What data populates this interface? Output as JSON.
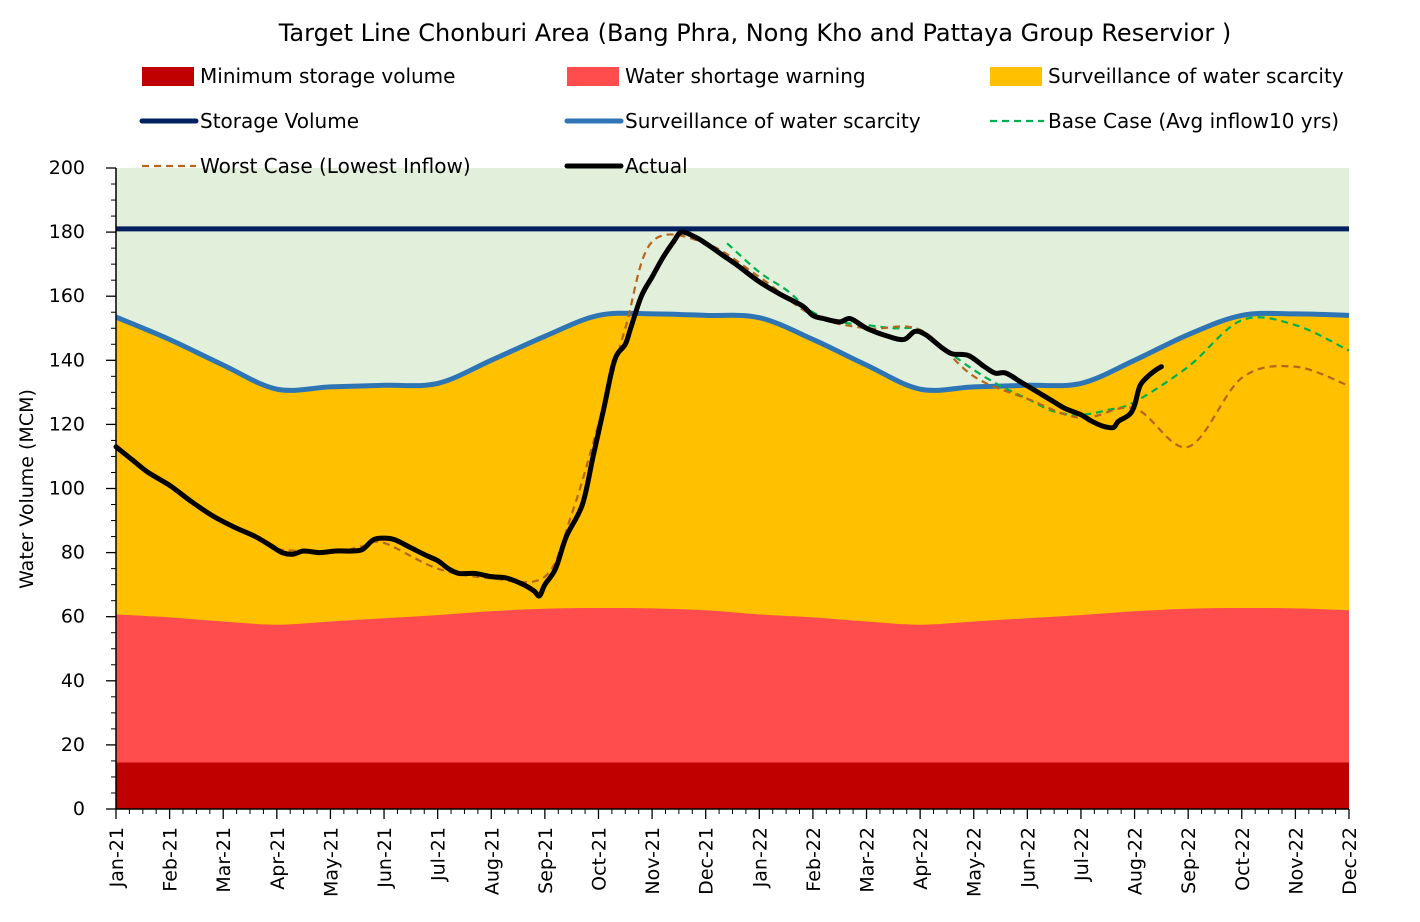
{
  "chart_data": {
    "type": "area",
    "title": "Target Line Chonburi Area (Bang Phra, Nong Kho and Pattaya Group Reservior )",
    "xlabel": "",
    "ylabel": "Water Volume (MCM)",
    "ylim": [
      0,
      200
    ],
    "yticks": [
      0,
      20,
      40,
      60,
      80,
      100,
      120,
      140,
      160,
      180,
      200
    ],
    "categories": [
      "Jan-21",
      "Feb-21",
      "Mar-21",
      "Apr-21",
      "May-21",
      "Jun-21",
      "Jul-21",
      "Aug-21",
      "Sep-21",
      "Oct-21",
      "Nov-21",
      "Dec-21",
      "Jan-22",
      "Feb-22",
      "Mar-22",
      "Apr-22",
      "May-22",
      "Jun-22",
      "Jul-22",
      "Aug-22",
      "Sep-22",
      "Oct-22",
      "Nov-22",
      "Dec-22"
    ],
    "colors": {
      "background": "#e2efda",
      "min_storage": "#c00000",
      "shortage": "#ff4d4d",
      "surveillance_fill": "#ffc000",
      "storage_line": "#002060",
      "surveillance_line": "#2e75b6",
      "base_case": "#00b050",
      "worst_case": "#b5651d",
      "actual": "#000000"
    },
    "legend": [
      {
        "key": "min_storage",
        "label": "Minimum storage volume",
        "kind": "box"
      },
      {
        "key": "shortage",
        "label": "Water shortage warning",
        "kind": "box"
      },
      {
        "key": "surveillance_fill",
        "label": "Surveillance of water scarcity",
        "kind": "box"
      },
      {
        "key": "storage_line",
        "label": "Storage Volume",
        "kind": "line"
      },
      {
        "key": "surveillance_line",
        "label": "Surveillance of water scarcity",
        "kind": "line"
      },
      {
        "key": "base_case",
        "label": "Base Case (Avg inflow10 yrs)",
        "kind": "dash"
      },
      {
        "key": "worst_case",
        "label": "Worst Case (Lowest Inflow)",
        "kind": "dash"
      },
      {
        "key": "actual",
        "label": "Actual",
        "kind": "thick"
      }
    ],
    "series": {
      "min_storage": [
        14.5,
        14.5,
        14.5,
        14.5,
        14.5,
        14.5,
        14.5,
        14.5,
        14.5,
        14.5,
        14.5,
        14.5,
        14.5,
        14.5,
        14.5,
        14.5,
        14.5,
        14.5,
        14.5,
        14.5,
        14.5,
        14.5,
        14.5,
        14.5
      ],
      "shortage": [
        60.7,
        59.8,
        58.5,
        57.5,
        58.5,
        59.5,
        60.5,
        61.7,
        62.5,
        62.7,
        62.6,
        62.0,
        60.7,
        59.8,
        58.5,
        57.5,
        58.5,
        59.5,
        60.5,
        61.7,
        62.5,
        62.7,
        62.6,
        62.0
      ],
      "storage_volume": [
        181,
        181,
        181,
        181,
        181,
        181,
        181,
        181,
        181,
        181,
        181,
        181,
        181,
        181,
        181,
        181,
        181,
        181,
        181,
        181,
        181,
        181,
        181,
        181
      ],
      "surveillance": [
        153.5,
        146.5,
        138.5,
        131.0,
        131.7,
        132.2,
        132.8,
        140.0,
        147.5,
        154.0,
        154.5,
        154.0,
        153.3,
        146.5,
        138.5,
        131.0,
        131.7,
        132.2,
        132.8,
        140.0,
        148.0,
        154.0,
        154.5,
        154.0
      ],
      "base_case": [
        {
          "x": 11.4,
          "y": 176.5
        },
        {
          "x": 12.0,
          "y": 167.5
        },
        {
          "x": 12.5,
          "y": 162
        },
        {
          "x": 13.0,
          "y": 155
        },
        {
          "x": 13.5,
          "y": 152
        },
        {
          "x": 14.0,
          "y": 151
        },
        {
          "x": 14.5,
          "y": 150
        },
        {
          "x": 15.0,
          "y": 149.5
        },
        {
          "x": 15.5,
          "y": 143
        },
        {
          "x": 16.0,
          "y": 137
        },
        {
          "x": 16.5,
          "y": 132
        },
        {
          "x": 17.0,
          "y": 128
        },
        {
          "x": 17.5,
          "y": 124
        },
        {
          "x": 18.0,
          "y": 123
        },
        {
          "x": 18.5,
          "y": 124.5
        },
        {
          "x": 19.0,
          "y": 127
        },
        {
          "x": 20.0,
          "y": 138
        },
        {
          "x": 21.0,
          "y": 152.5
        },
        {
          "x": 22.0,
          "y": 151
        },
        {
          "x": 23.0,
          "y": 143
        }
      ],
      "worst_case": [
        {
          "x": 3.0,
          "y": 81
        },
        {
          "x": 4.0,
          "y": 80
        },
        {
          "x": 4.6,
          "y": 82
        },
        {
          "x": 5.0,
          "y": 83
        },
        {
          "x": 6.0,
          "y": 75
        },
        {
          "x": 7.0,
          "y": 72
        },
        {
          "x": 8.0,
          "y": 72.5
        },
        {
          "x": 8.5,
          "y": 92
        },
        {
          "x": 9.0,
          "y": 120
        },
        {
          "x": 9.5,
          "y": 150
        },
        {
          "x": 10.0,
          "y": 177
        },
        {
          "x": 11.0,
          "y": 176.5
        },
        {
          "x": 12.0,
          "y": 166
        },
        {
          "x": 13.0,
          "y": 154
        },
        {
          "x": 14.0,
          "y": 150
        },
        {
          "x": 15.0,
          "y": 149.5
        },
        {
          "x": 16.0,
          "y": 135
        },
        {
          "x": 17.0,
          "y": 128
        },
        {
          "x": 18.0,
          "y": 122
        },
        {
          "x": 19.0,
          "y": 125
        },
        {
          "x": 20.0,
          "y": 113
        },
        {
          "x": 21.0,
          "y": 134.5
        },
        {
          "x": 22.0,
          "y": 138
        },
        {
          "x": 23.0,
          "y": 132
        }
      ],
      "actual": [
        {
          "x": 0.0,
          "y": 113
        },
        {
          "x": 0.3,
          "y": 109
        },
        {
          "x": 0.6,
          "y": 105
        },
        {
          "x": 1.0,
          "y": 101
        },
        {
          "x": 1.4,
          "y": 96
        },
        {
          "x": 1.8,
          "y": 91.5
        },
        {
          "x": 2.2,
          "y": 88
        },
        {
          "x": 2.6,
          "y": 85
        },
        {
          "x": 2.9,
          "y": 82
        },
        {
          "x": 3.1,
          "y": 80
        },
        {
          "x": 3.3,
          "y": 79.5
        },
        {
          "x": 3.5,
          "y": 80.5
        },
        {
          "x": 3.8,
          "y": 80
        },
        {
          "x": 4.1,
          "y": 80.5
        },
        {
          "x": 4.4,
          "y": 80.5
        },
        {
          "x": 4.6,
          "y": 81
        },
        {
          "x": 4.8,
          "y": 84
        },
        {
          "x": 5.0,
          "y": 84.5
        },
        {
          "x": 5.2,
          "y": 84
        },
        {
          "x": 5.5,
          "y": 81.5
        },
        {
          "x": 5.8,
          "y": 79
        },
        {
          "x": 6.0,
          "y": 77.5
        },
        {
          "x": 6.2,
          "y": 75
        },
        {
          "x": 6.4,
          "y": 73.5
        },
        {
          "x": 6.7,
          "y": 73.5
        },
        {
          "x": 7.0,
          "y": 72.5
        },
        {
          "x": 7.3,
          "y": 72
        },
        {
          "x": 7.6,
          "y": 70
        },
        {
          "x": 7.8,
          "y": 68
        },
        {
          "x": 7.9,
          "y": 66.5
        },
        {
          "x": 8.0,
          "y": 70
        },
        {
          "x": 8.2,
          "y": 75
        },
        {
          "x": 8.4,
          "y": 85
        },
        {
          "x": 8.7,
          "y": 95
        },
        {
          "x": 8.9,
          "y": 110
        },
        {
          "x": 9.1,
          "y": 125
        },
        {
          "x": 9.3,
          "y": 140
        },
        {
          "x": 9.5,
          "y": 145
        },
        {
          "x": 9.6,
          "y": 150
        },
        {
          "x": 9.8,
          "y": 160
        },
        {
          "x": 10.0,
          "y": 166
        },
        {
          "x": 10.2,
          "y": 172
        },
        {
          "x": 10.4,
          "y": 177
        },
        {
          "x": 10.55,
          "y": 180
        },
        {
          "x": 10.8,
          "y": 178.5
        },
        {
          "x": 11.0,
          "y": 176.5
        },
        {
          "x": 11.3,
          "y": 173
        },
        {
          "x": 11.6,
          "y": 169.5
        },
        {
          "x": 12.0,
          "y": 164.5
        },
        {
          "x": 12.4,
          "y": 160.5
        },
        {
          "x": 12.8,
          "y": 157
        },
        {
          "x": 13.0,
          "y": 154
        },
        {
          "x": 13.2,
          "y": 153
        },
        {
          "x": 13.5,
          "y": 152
        },
        {
          "x": 13.7,
          "y": 153
        },
        {
          "x": 14.0,
          "y": 150
        },
        {
          "x": 14.4,
          "y": 147.5
        },
        {
          "x": 14.7,
          "y": 146.5
        },
        {
          "x": 14.9,
          "y": 149
        },
        {
          "x": 15.1,
          "y": 148
        },
        {
          "x": 15.4,
          "y": 144
        },
        {
          "x": 15.6,
          "y": 142
        },
        {
          "x": 15.9,
          "y": 141.5
        },
        {
          "x": 16.2,
          "y": 138
        },
        {
          "x": 16.4,
          "y": 136
        },
        {
          "x": 16.6,
          "y": 136
        },
        {
          "x": 16.9,
          "y": 133
        },
        {
          "x": 17.2,
          "y": 130
        },
        {
          "x": 17.5,
          "y": 127
        },
        {
          "x": 17.7,
          "y": 125
        },
        {
          "x": 18.0,
          "y": 123
        },
        {
          "x": 18.2,
          "y": 121
        },
        {
          "x": 18.4,
          "y": 119.5
        },
        {
          "x": 18.6,
          "y": 119
        },
        {
          "x": 18.7,
          "y": 121
        },
        {
          "x": 18.9,
          "y": 123
        },
        {
          "x": 19.0,
          "y": 126
        },
        {
          "x": 19.1,
          "y": 132
        },
        {
          "x": 19.25,
          "y": 135
        },
        {
          "x": 19.4,
          "y": 137
        },
        {
          "x": 19.5,
          "y": 138
        }
      ]
    }
  }
}
